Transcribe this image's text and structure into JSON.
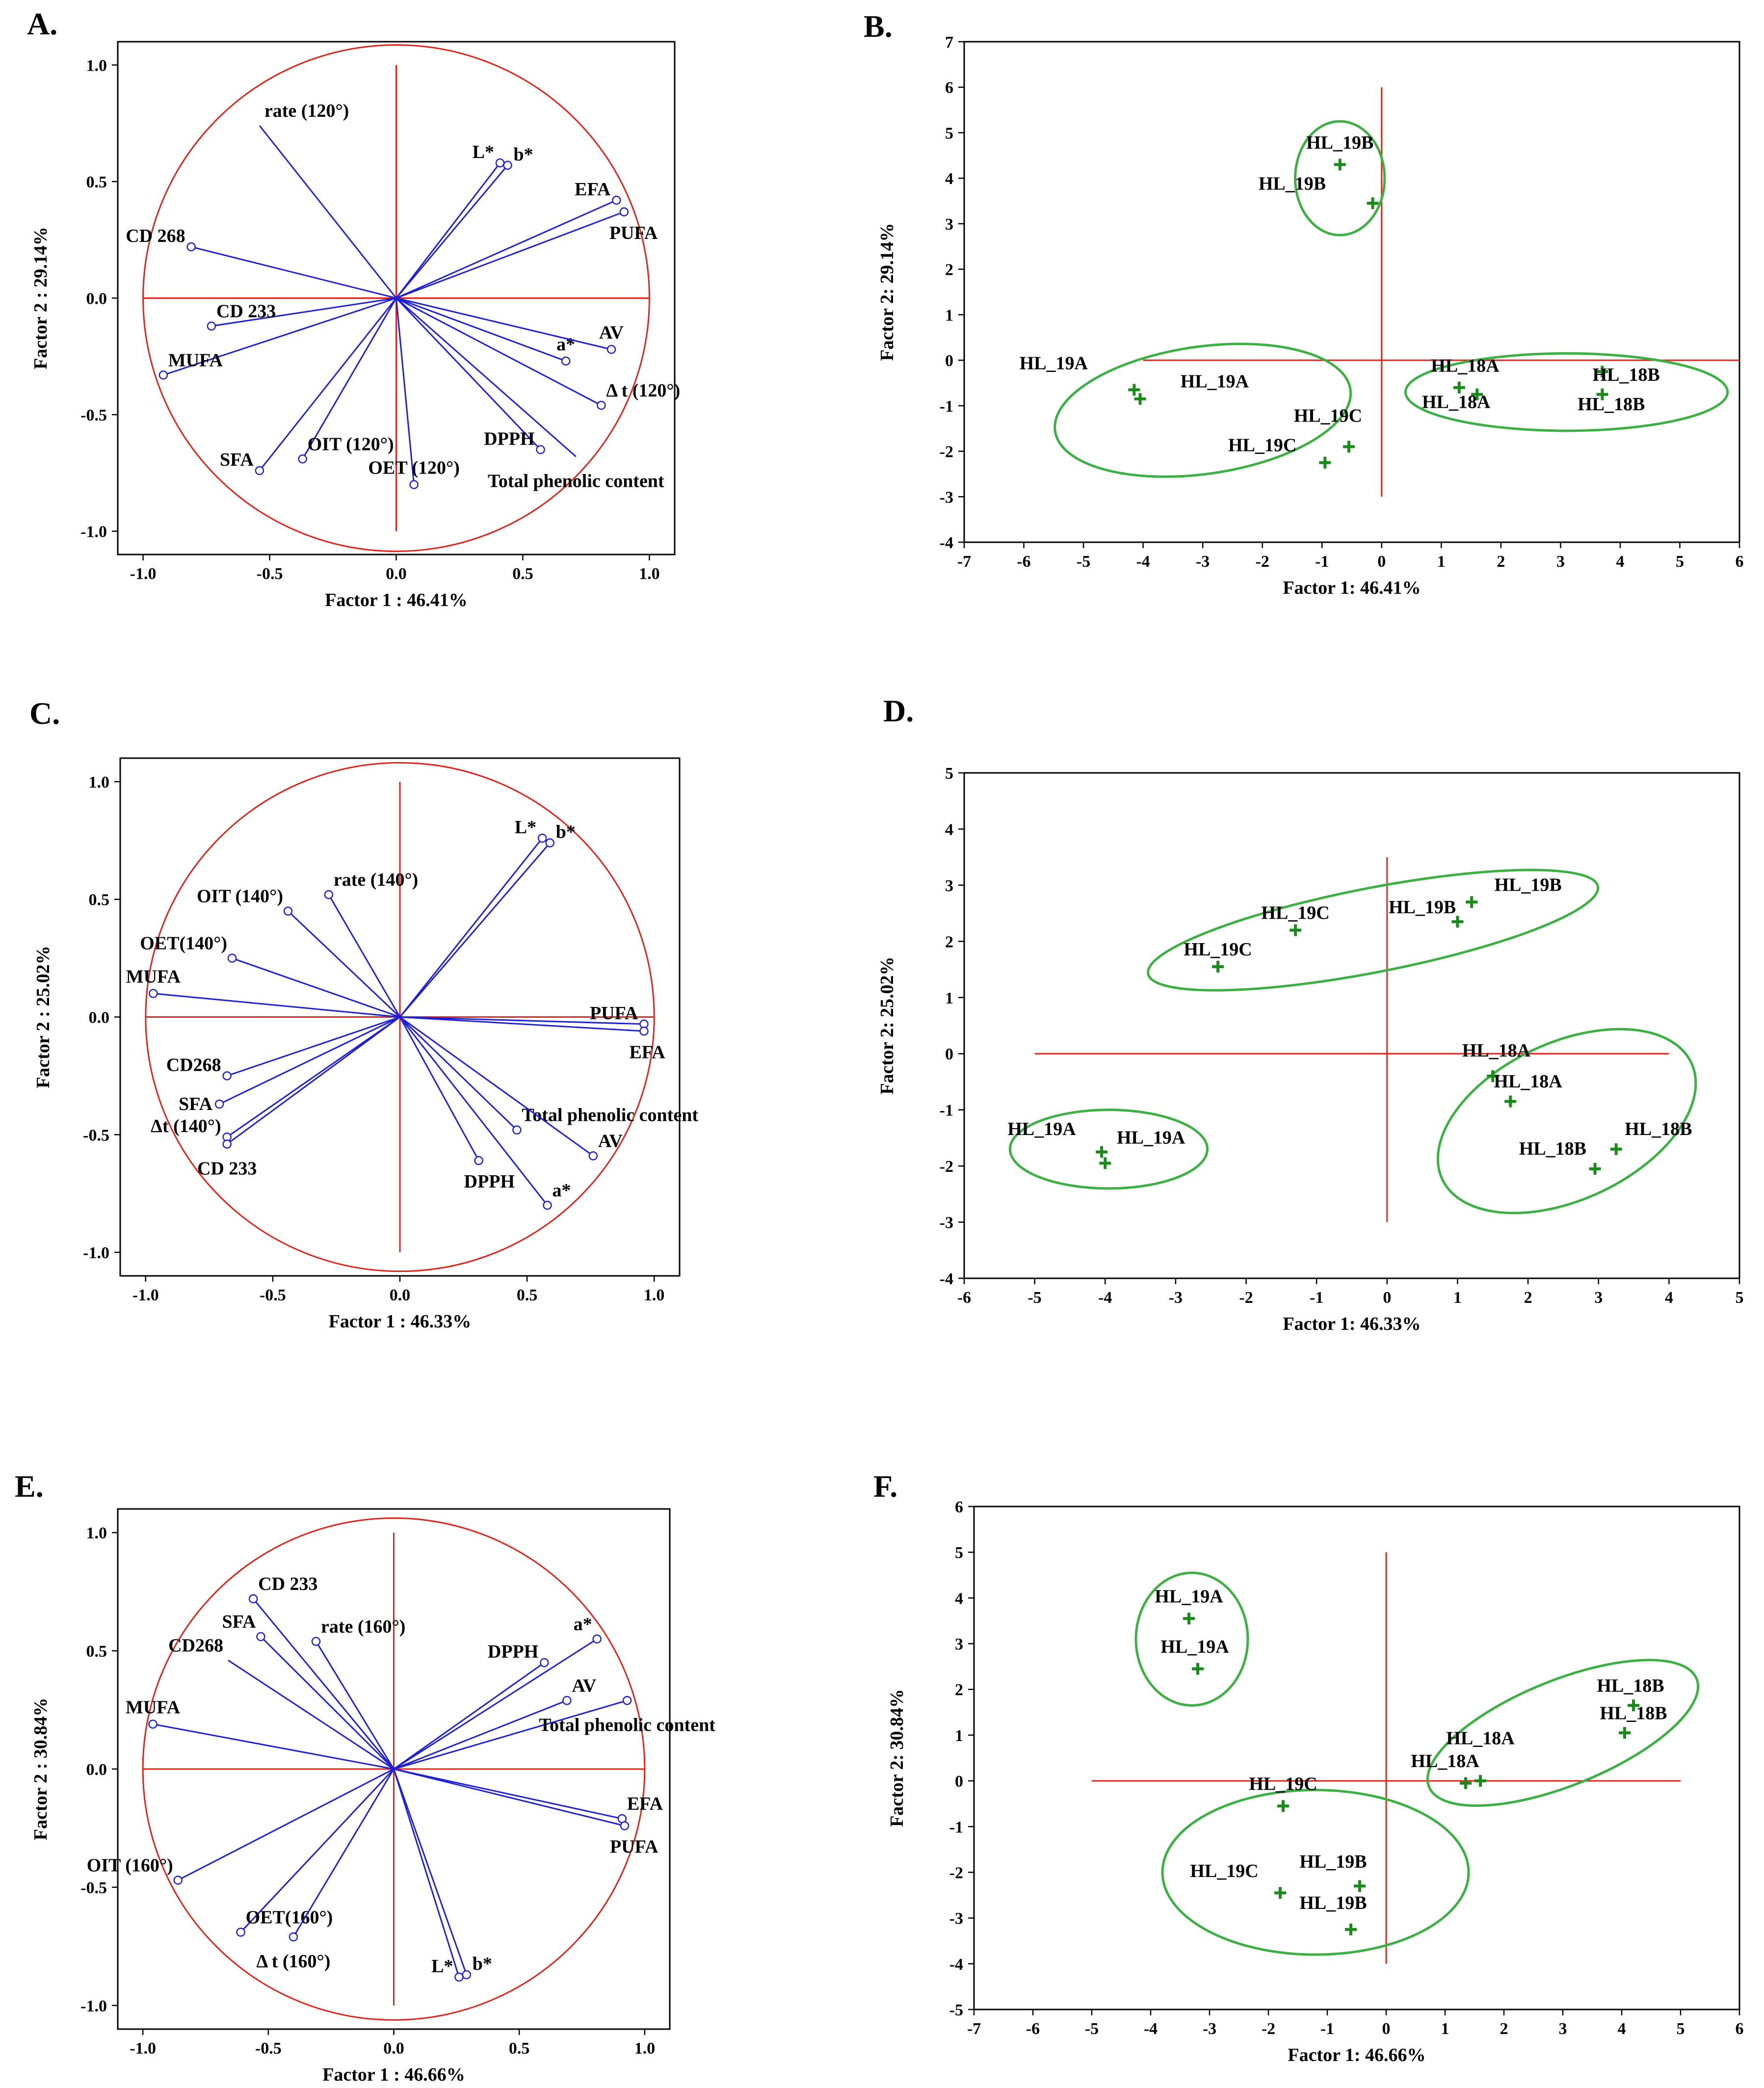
{
  "colors": {
    "vector": "#1f1fd6",
    "circle": "#e2231a",
    "cross": "#e2231a",
    "point": "#1a8a1a",
    "ellipse": "#3cb043",
    "frame": "#000000"
  },
  "chart_data": [
    {
      "panel": "A.",
      "type": "scatter",
      "kind": "loading",
      "xlabel": "Factor 1 : 46.41%",
      "ylabel": "Factor 2 : 29.14%",
      "xlim": [
        -1.1,
        1.1
      ],
      "ylim": [
        -1.1,
        1.1
      ],
      "xticks": [
        "-1.0",
        "-0.5",
        "0.0",
        "0.5",
        "1.0"
      ],
      "xtickvals": [
        -1,
        -0.5,
        0,
        0.5,
        1
      ],
      "yticks": [
        "-1.0",
        "-0.5",
        "0.0",
        "0.5",
        "1.0"
      ],
      "ytickvals": [
        -1,
        -0.5,
        0,
        0.5,
        1
      ],
      "points": [
        {
          "label": "rate (120°)",
          "x": -0.54,
          "y": 0.74,
          "marker": false,
          "anchor": "above-right"
        },
        {
          "label": "L*",
          "x": 0.41,
          "y": 0.58,
          "marker": true,
          "anchor": "left-above"
        },
        {
          "label": "b*",
          "x": 0.44,
          "y": 0.57,
          "marker": true,
          "anchor": "right-above"
        },
        {
          "label": "EFA",
          "x": 0.87,
          "y": 0.42,
          "marker": true,
          "anchor": "left-above"
        },
        {
          "label": "PUFA",
          "x": 0.9,
          "y": 0.37,
          "marker": true,
          "anchor": "below-left"
        },
        {
          "label": "CD 268",
          "x": -0.81,
          "y": 0.22,
          "marker": true,
          "anchor": "left-above"
        },
        {
          "label": "CD 233",
          "x": -0.73,
          "y": -0.12,
          "marker": true,
          "anchor": "above-right"
        },
        {
          "label": "MUFA",
          "x": -0.92,
          "y": -0.33,
          "marker": true,
          "anchor": "above-right"
        },
        {
          "label": "a*",
          "x": 0.67,
          "y": -0.27,
          "marker": true,
          "anchor": "above"
        },
        {
          "label": "AV",
          "x": 0.85,
          "y": -0.22,
          "marker": true,
          "anchor": "above"
        },
        {
          "label": "Δ t (120°)",
          "x": 0.81,
          "y": -0.46,
          "marker": true,
          "anchor": "above-right"
        },
        {
          "label": "SFA",
          "x": -0.54,
          "y": -0.74,
          "marker": true,
          "anchor": "left-above"
        },
        {
          "label": "OIT (120°)",
          "x": -0.37,
          "y": -0.69,
          "marker": true,
          "anchor": "above-right"
        },
        {
          "label": "OET (120°)",
          "x": 0.07,
          "y": -0.8,
          "marker": true,
          "anchor": "above"
        },
        {
          "label": "DPPH",
          "x": 0.57,
          "y": -0.65,
          "marker": true,
          "anchor": "left-above"
        },
        {
          "label": "Total phenolic content",
          "x": 0.71,
          "y": -0.68,
          "marker": false,
          "anchor": "below-center"
        }
      ]
    },
    {
      "panel": "B.",
      "type": "scatter",
      "kind": "score",
      "xlabel": "Factor 1: 46.41%",
      "ylabel": "Factor 2: 29.14%",
      "xlim": [
        -7,
        6
      ],
      "ylim": [
        -4,
        7
      ],
      "xticks": [
        "-7",
        "-6",
        "-5",
        "-4",
        "-3",
        "-2",
        "-1",
        "0",
        "1",
        "2",
        "3",
        "4",
        "5",
        "6"
      ],
      "xtickvals": [
        -7,
        -6,
        -5,
        -4,
        -3,
        -2,
        -1,
        0,
        1,
        2,
        3,
        4,
        5,
        6
      ],
      "yticks": [
        "-4",
        "-3",
        "-2",
        "-1",
        "0",
        "1",
        "2",
        "3",
        "4",
        "5",
        "6",
        "7"
      ],
      "ytickvals": [
        -4,
        -3,
        -2,
        -1,
        0,
        1,
        2,
        3,
        4,
        5,
        6,
        7
      ],
      "crossX": [
        -4.0,
        6.0
      ],
      "crossY": [
        -3.0,
        6.0
      ],
      "points": [
        {
          "label": "HL_19B",
          "x": -0.7,
          "y": 4.3,
          "ldx": -0.7,
          "ldy": 4.65
        },
        {
          "label": "HL_19B",
          "x": -0.15,
          "y": 3.45,
          "ldx": -1.5,
          "ldy": 3.75
        },
        {
          "label": "HL_19A",
          "x": -4.15,
          "y": -0.65,
          "ldx": -5.5,
          "ldy": -0.2
        },
        {
          "label": "HL_19A",
          "x": -4.05,
          "y": -0.85,
          "ldx": -2.8,
          "ldy": -0.6
        },
        {
          "label": "HL_19C",
          "x": -0.55,
          "y": -1.9,
          "ldx": -0.9,
          "ldy": -1.35
        },
        {
          "label": "HL_19C",
          "x": -0.95,
          "y": -2.25,
          "ldx": -2.0,
          "ldy": -2.0
        },
        {
          "label": "HL_18A",
          "x": 1.3,
          "y": -0.6,
          "ldx": 1.4,
          "ldy": -0.25
        },
        {
          "label": "HL_18A",
          "x": 1.6,
          "y": -0.75,
          "ldx": 1.25,
          "ldy": -1.05
        },
        {
          "label": "HL_18B",
          "x": 3.7,
          "y": -0.25,
          "ldx": 4.1,
          "ldy": -0.45
        },
        {
          "label": "HL_18B",
          "x": 3.7,
          "y": -0.75,
          "ldx": 3.85,
          "ldy": -1.1
        }
      ],
      "ellipses": [
        {
          "cx": -0.7,
          "cy": 4.0,
          "rx": 0.75,
          "ry": 1.25,
          "rot": 0
        },
        {
          "cx": -3.0,
          "cy": -1.1,
          "rx": 2.5,
          "ry": 1.4,
          "rot": -8
        },
        {
          "cx": 3.1,
          "cy": -0.7,
          "rx": 2.7,
          "ry": 0.85,
          "rot": 0
        }
      ]
    },
    {
      "panel": "C.",
      "type": "scatter",
      "kind": "loading",
      "xlabel": "Factor 1 : 46.33%",
      "ylabel": "Factor 2 : 25.02%",
      "xlim": [
        -1.1,
        1.1
      ],
      "ylim": [
        -1.1,
        1.1
      ],
      "xticks": [
        "-1.0",
        "-0.5",
        "0.0",
        "0.5",
        "1.0"
      ],
      "xtickvals": [
        -1,
        -0.5,
        0,
        0.5,
        1
      ],
      "yticks": [
        "-1.0",
        "-0.5",
        "0.0",
        "0.5",
        "1.0"
      ],
      "ytickvals": [
        -1,
        -0.5,
        0,
        0.5,
        1
      ],
      "points": [
        {
          "label": "L*",
          "x": 0.56,
          "y": 0.76,
          "marker": true,
          "anchor": "left-above"
        },
        {
          "label": "b*",
          "x": 0.59,
          "y": 0.74,
          "marker": true,
          "anchor": "right-above"
        },
        {
          "label": "rate (140°)",
          "x": -0.28,
          "y": 0.52,
          "marker": true,
          "anchor": "above-right"
        },
        {
          "label": "OIT (140°)",
          "x": -0.44,
          "y": 0.45,
          "marker": true,
          "anchor": "above-left"
        },
        {
          "label": "OET(140°)",
          "x": -0.66,
          "y": 0.25,
          "marker": true,
          "anchor": "above-left"
        },
        {
          "label": "MUFA",
          "x": -0.97,
          "y": 0.1,
          "marker": true,
          "anchor": "above"
        },
        {
          "label": "PUFA",
          "x": 0.96,
          "y": -0.03,
          "marker": true,
          "anchor": "left-above"
        },
        {
          "label": "EFA",
          "x": 0.96,
          "y": -0.06,
          "marker": true,
          "anchor": "below-left"
        },
        {
          "label": "CD268",
          "x": -0.68,
          "y": -0.25,
          "marker": true,
          "anchor": "left-above"
        },
        {
          "label": "SFA",
          "x": -0.71,
          "y": -0.37,
          "marker": true,
          "anchor": "left"
        },
        {
          "label": "Δt (140°)",
          "x": -0.68,
          "y": -0.51,
          "marker": true,
          "anchor": "left-above"
        },
        {
          "label": "CD 233",
          "x": -0.68,
          "y": -0.54,
          "marker": true,
          "anchor": "below-center"
        },
        {
          "label": "Total phenolic content",
          "x": 0.46,
          "y": -0.48,
          "marker": true,
          "anchor": "above-right"
        },
        {
          "label": "AV",
          "x": 0.76,
          "y": -0.59,
          "marker": true,
          "anchor": "above-right"
        },
        {
          "label": "DPPH",
          "x": 0.31,
          "y": -0.61,
          "marker": true,
          "anchor": "below-left"
        },
        {
          "label": "a*",
          "x": 0.58,
          "y": -0.8,
          "marker": true,
          "anchor": "above-right"
        }
      ]
    },
    {
      "panel": "D.",
      "type": "scatter",
      "kind": "score",
      "xlabel": "Factor 1: 46.33%",
      "ylabel": "Factor 2: 25.02%",
      "xlim": [
        -6,
        5
      ],
      "ylim": [
        -4,
        5
      ],
      "xticks": [
        "-6",
        "-5",
        "-4",
        "-3",
        "-2",
        "-1",
        "0",
        "1",
        "2",
        "3",
        "4",
        "5"
      ],
      "xtickvals": [
        -6,
        -5,
        -4,
        -3,
        -2,
        -1,
        0,
        1,
        2,
        3,
        4,
        5
      ],
      "yticks": [
        "-4",
        "-3",
        "-2",
        "-1",
        "0",
        "1",
        "2",
        "3",
        "4",
        "5"
      ],
      "ytickvals": [
        -4,
        -3,
        -2,
        -1,
        0,
        1,
        2,
        3,
        4,
        5
      ],
      "crossX": [
        -5.0,
        4.0
      ],
      "crossY": [
        -3.0,
        3.5
      ],
      "points": [
        {
          "label": "HL_19B",
          "x": 1.2,
          "y": 2.7,
          "ldx": 2.0,
          "ldy": 2.9
        },
        {
          "label": "HL_19B",
          "x": 1.0,
          "y": 2.35,
          "ldx": 0.5,
          "ldy": 2.5
        },
        {
          "label": "HL_19C",
          "x": -1.3,
          "y": 2.2,
          "ldx": -1.3,
          "ldy": 2.4
        },
        {
          "label": "HL_19C",
          "x": -2.4,
          "y": 1.55,
          "ldx": -2.4,
          "ldy": 1.75
        },
        {
          "label": "HL_18A",
          "x": 1.5,
          "y": -0.4,
          "ldx": 1.55,
          "ldy": -0.05
        },
        {
          "label": "HL_18A",
          "x": 1.75,
          "y": -0.85,
          "ldx": 2.0,
          "ldy": -0.6
        },
        {
          "label": "HL_18B",
          "x": 3.25,
          "y": -1.7,
          "ldx": 3.85,
          "ldy": -1.45
        },
        {
          "label": "HL_18B",
          "x": 2.95,
          "y": -2.05,
          "ldx": 2.35,
          "ldy": -1.8
        },
        {
          "label": "HL_19A",
          "x": -4.05,
          "y": -1.75,
          "ldx": -4.9,
          "ldy": -1.45
        },
        {
          "label": "HL_19A",
          "x": -4.0,
          "y": -1.95,
          "ldx": -3.35,
          "ldy": -1.6
        }
      ],
      "ellipses": [
        {
          "cx": -0.2,
          "cy": 2.2,
          "rx": 3.25,
          "ry": 0.75,
          "rot": -11
        },
        {
          "cx": 2.55,
          "cy": -1.2,
          "rx": 1.95,
          "ry": 1.4,
          "rot": -25
        },
        {
          "cx": -3.95,
          "cy": -1.7,
          "rx": 1.4,
          "ry": 0.7,
          "rot": 0
        }
      ]
    },
    {
      "panel": "E.",
      "type": "scatter",
      "kind": "loading",
      "xlabel": "Factor 1 : 46.66%",
      "ylabel": "Factor 2 : 30.84%",
      "xlim": [
        -1.1,
        1.1
      ],
      "ylim": [
        -1.1,
        1.1
      ],
      "xticks": [
        "-1.0",
        "-0.5",
        "0.0",
        "0.5",
        "1.0"
      ],
      "xtickvals": [
        -1,
        -0.5,
        0,
        0.5,
        1
      ],
      "yticks": [
        "-1.0",
        "-0.5",
        "0.0",
        "0.5",
        "1.0"
      ],
      "ytickvals": [
        -1,
        -0.5,
        0,
        0.5,
        1
      ],
      "points": [
        {
          "label": "CD 233",
          "x": -0.56,
          "y": 0.72,
          "marker": true,
          "anchor": "above-right"
        },
        {
          "label": "SFA",
          "x": -0.53,
          "y": 0.56,
          "marker": true,
          "anchor": "above-left"
        },
        {
          "label": "rate (160°)",
          "x": -0.31,
          "y": 0.54,
          "marker": true,
          "anchor": "above-right"
        },
        {
          "label": "CD268",
          "x": -0.66,
          "y": 0.46,
          "marker": false,
          "anchor": "above-left"
        },
        {
          "label": "MUFA",
          "x": -0.96,
          "y": 0.19,
          "marker": true,
          "anchor": "above"
        },
        {
          "label": "DPPH",
          "x": 0.6,
          "y": 0.45,
          "marker": true,
          "anchor": "left-above"
        },
        {
          "label": "a*",
          "x": 0.81,
          "y": 0.55,
          "marker": true,
          "anchor": "above-left"
        },
        {
          "label": "AV",
          "x": 0.69,
          "y": 0.29,
          "marker": true,
          "anchor": "above-right"
        },
        {
          "label": "Total phenolic content",
          "x": 0.93,
          "y": 0.29,
          "marker": true,
          "anchor": "below-center"
        },
        {
          "label": "EFA",
          "x": 0.91,
          "y": -0.21,
          "marker": true,
          "anchor": "above-right"
        },
        {
          "label": "PUFA",
          "x": 0.92,
          "y": -0.24,
          "marker": true,
          "anchor": "below-left"
        },
        {
          "label": "OIT (160°)",
          "x": -0.86,
          "y": -0.47,
          "marker": true,
          "anchor": "above-left"
        },
        {
          "label": "OET(160°)",
          "x": -0.61,
          "y": -0.69,
          "marker": true,
          "anchor": "above-right"
        },
        {
          "label": "Δ t (160°)",
          "x": -0.4,
          "y": -0.71,
          "marker": true,
          "anchor": "below-center"
        },
        {
          "label": "L*",
          "x": 0.26,
          "y": -0.88,
          "marker": true,
          "anchor": "left-above"
        },
        {
          "label": "b*",
          "x": 0.29,
          "y": -0.87,
          "marker": true,
          "anchor": "right-above"
        }
      ]
    },
    {
      "panel": "F.",
      "type": "scatter",
      "kind": "score",
      "xlabel": "Factor 1: 46.66%",
      "ylabel": "Factor 2: 30.84%",
      "xlim": [
        -7,
        6
      ],
      "ylim": [
        -5,
        6
      ],
      "xticks": [
        "-7",
        "-6",
        "-5",
        "-4",
        "-3",
        "-2",
        "-1",
        "0",
        "1",
        "2",
        "3",
        "4",
        "5",
        "6"
      ],
      "xtickvals": [
        -7,
        -6,
        -5,
        -4,
        -3,
        -2,
        -1,
        0,
        1,
        2,
        3,
        4,
        5,
        6
      ],
      "yticks": [
        "-5",
        "-4",
        "-3",
        "-2",
        "-1",
        "0",
        "1",
        "2",
        "3",
        "4",
        "5",
        "6"
      ],
      "ytickvals": [
        -5,
        -4,
        -3,
        -2,
        -1,
        0,
        1,
        2,
        3,
        4,
        5,
        6
      ],
      "crossX": [
        -5.0,
        5.0
      ],
      "crossY": [
        -4.0,
        5.0
      ],
      "points": [
        {
          "label": "HL_19A",
          "x": -3.35,
          "y": 3.55,
          "ldx": -3.35,
          "ldy": 3.9
        },
        {
          "label": "HL_19A",
          "x": -3.2,
          "y": 2.45,
          "ldx": -3.25,
          "ldy": 2.8
        },
        {
          "label": "HL_18B",
          "x": 4.2,
          "y": 1.65,
          "ldx": 4.15,
          "ldy": 1.95
        },
        {
          "label": "HL_18B",
          "x": 4.05,
          "y": 1.05,
          "ldx": 4.2,
          "ldy": 1.35
        },
        {
          "label": "HL_18A",
          "x": 1.6,
          "y": 0.0,
          "ldx": 1.6,
          "ldy": 0.8
        },
        {
          "label": "HL_18A",
          "x": 1.35,
          "y": -0.05,
          "ldx": 1.0,
          "ldy": 0.3
        },
        {
          "label": "HL_19C",
          "x": -1.75,
          "y": -0.55,
          "ldx": -1.75,
          "ldy": -0.2
        },
        {
          "label": "HL_19C",
          "x": -1.8,
          "y": -2.45,
          "ldx": -2.75,
          "ldy": -2.1
        },
        {
          "label": "HL_19B",
          "x": -0.45,
          "y": -2.3,
          "ldx": -0.9,
          "ldy": -1.9
        },
        {
          "label": "HL_19B",
          "x": -0.6,
          "y": -3.25,
          "ldx": -0.9,
          "ldy": -2.8
        }
      ],
      "ellipses": [
        {
          "cx": -3.3,
          "cy": 3.1,
          "rx": 0.95,
          "ry": 1.45,
          "rot": 0
        },
        {
          "cx": 3.0,
          "cy": 1.05,
          "rx": 2.45,
          "ry": 1.15,
          "rot": -22
        },
        {
          "cx": -1.2,
          "cy": -2.0,
          "rx": 2.6,
          "ry": 1.8,
          "rot": 0
        }
      ]
    }
  ]
}
